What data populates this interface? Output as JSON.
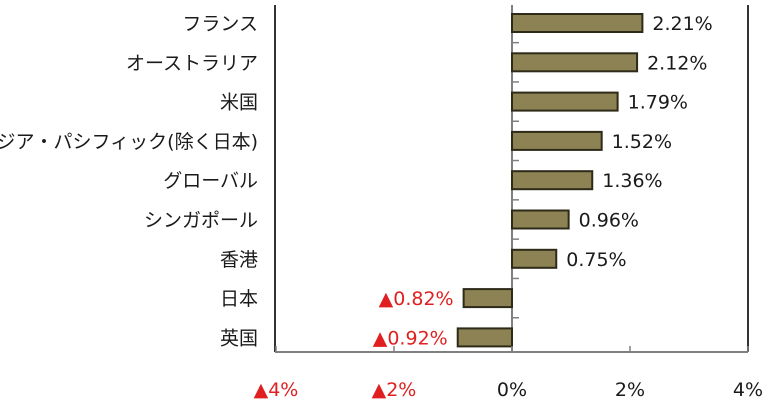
{
  "chart_data": {
    "type": "bar",
    "orientation": "horizontal",
    "categories": [
      "フランス",
      "オーストラリア",
      "米国",
      "アジア・パシフィック(除く日本)",
      "グローバル",
      "シンガポール",
      "香港",
      "日本",
      "英国"
    ],
    "values": [
      2.21,
      2.12,
      1.79,
      1.52,
      1.36,
      0.96,
      0.75,
      -0.82,
      -0.92
    ],
    "value_labels": [
      "2.21%",
      "2.12%",
      "1.79%",
      "1.52%",
      "1.36%",
      "0.96%",
      "0.75%",
      "▲0.82%",
      "▲0.92%"
    ],
    "x_ticks": [
      -4,
      -2,
      0,
      2,
      4
    ],
    "x_tick_labels": [
      "▲4%",
      "▲2%",
      "0%",
      "2%",
      "4%"
    ],
    "xlim": [
      -4,
      4
    ],
    "grid": false,
    "legend": "none",
    "colors": {
      "bar_fill": "#8c8254",
      "bar_stroke": "#2e2a18",
      "axis": "#808080",
      "frame": "#333333",
      "positive_text": "#1a1a1a",
      "negative_text": "#e02020"
    }
  }
}
